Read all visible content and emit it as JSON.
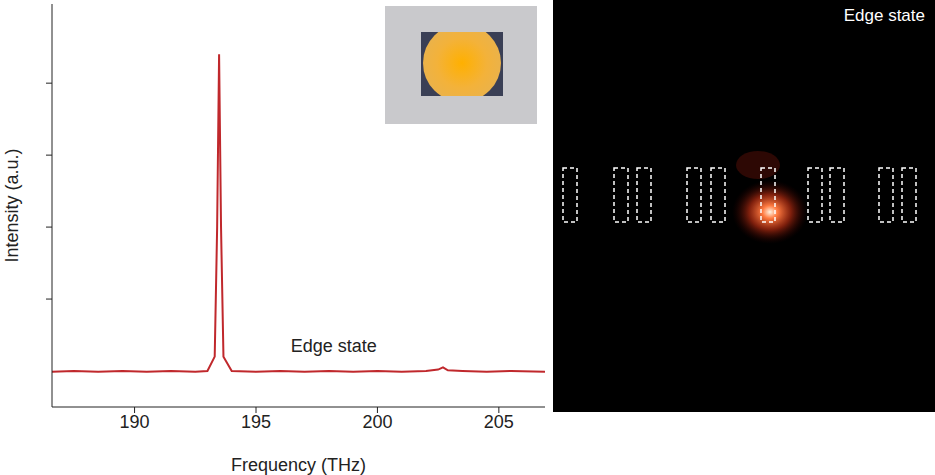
{
  "chart_data": {
    "type": "line",
    "x_label": "Frequency (THz)",
    "y_label": "Intensity (a.u.)",
    "x": [
      186.6,
      187.5,
      188.5,
      189.5,
      190.5,
      191.5,
      192.5,
      193.0,
      193.3,
      193.4,
      193.48,
      193.56,
      193.66,
      194.0,
      195,
      196,
      197,
      198,
      199,
      200,
      201,
      202,
      202.5,
      202.7,
      202.9,
      203.5,
      204.5,
      205.5,
      206.9
    ],
    "values": [
      0.49,
      0.5,
      0.49,
      0.5,
      0.49,
      0.5,
      0.49,
      0.5,
      0.7,
      2.5,
      4.9,
      2.5,
      0.7,
      0.5,
      0.49,
      0.5,
      0.49,
      0.5,
      0.49,
      0.5,
      0.49,
      0.5,
      0.52,
      0.55,
      0.51,
      0.5,
      0.49,
      0.5,
      0.49
    ],
    "color": "#c0282c",
    "xlim": [
      186.6,
      206.9
    ],
    "xticks": [
      190,
      195,
      200,
      205
    ],
    "ylim": [
      0,
      5.6
    ],
    "yticks": [
      1.5,
      2.5,
      3.5,
      4.5
    ],
    "tick_labels": "x",
    "grid": false,
    "annotations": [
      {
        "text": "Edge state",
        "x": 198.2,
        "y": 0.86
      }
    ]
  },
  "image": {
    "label": "Edge state"
  }
}
